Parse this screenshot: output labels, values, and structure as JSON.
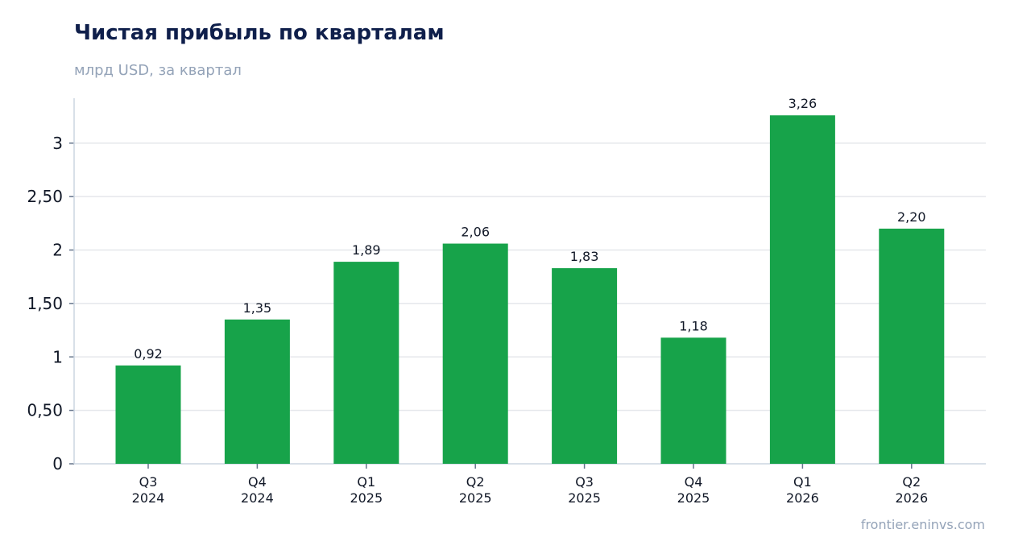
{
  "chart_data": {
    "type": "bar",
    "title": "Чистая прибыль по кварталам",
    "subtitle": "млрд USD, за квартал",
    "source": "frontier.eninvs.com",
    "categories": [
      [
        "Q3",
        "2024"
      ],
      [
        "Q4",
        "2024"
      ],
      [
        "Q1",
        "2025"
      ],
      [
        "Q2",
        "2025"
      ],
      [
        "Q3",
        "2025"
      ],
      [
        "Q4",
        "2025"
      ],
      [
        "Q1",
        "2026"
      ],
      [
        "Q2",
        "2026"
      ]
    ],
    "values": [
      0.92,
      1.35,
      1.89,
      2.06,
      1.83,
      1.18,
      3.26,
      2.2
    ],
    "value_labels": [
      "0,92",
      "1,35",
      "1,89",
      "2,06",
      "1,83",
      "1,18",
      "3,26",
      "2,20"
    ],
    "ylim": [
      0,
      3.42
    ],
    "yticks": [
      0,
      0.5,
      1,
      1.5,
      2,
      2.5,
      3
    ],
    "ytick_labels": [
      "0",
      "0,50",
      "1",
      "1,50",
      "2",
      "2,50",
      "3"
    ],
    "grid": true,
    "colors": {
      "bar": "#17a34a",
      "grid": "#e5e7eb",
      "axis": "#cbd5e1",
      "title": "#0f1f4b",
      "muted": "#94a3b8"
    }
  }
}
